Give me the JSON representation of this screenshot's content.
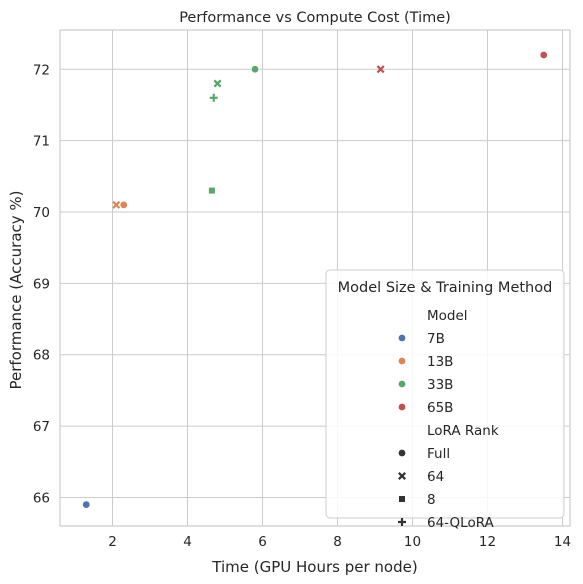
{
  "chart_data": {
    "type": "scatter",
    "title": "Performance vs Compute Cost (Time)",
    "xlabel": "Time (GPU Hours per node)",
    "ylabel": "Performance (Accuracy %)",
    "xlim": [
      0.6,
      14.2
    ],
    "ylim": [
      65.6,
      72.55
    ],
    "xticks": [
      2,
      4,
      6,
      8,
      10,
      12,
      14
    ],
    "yticks": [
      66,
      67,
      68,
      69,
      70,
      71,
      72
    ],
    "grid": true,
    "legend_position": "lower right",
    "colors": {
      "7B": "#4c72b0",
      "13B": "#dd8452",
      "33B": "#55a868",
      "65B": "#c44e52"
    },
    "points": [
      {
        "model": "7B",
        "rank": "Full",
        "x": 1.3,
        "y": 65.9
      },
      {
        "model": "13B",
        "rank": "64",
        "x": 2.1,
        "y": 70.1
      },
      {
        "model": "13B",
        "rank": "Full",
        "x": 2.3,
        "y": 70.1
      },
      {
        "model": "33B",
        "rank": "8",
        "x": 4.65,
        "y": 70.3
      },
      {
        "model": "33B",
        "rank": "64-QLoRA",
        "x": 4.7,
        "y": 71.6
      },
      {
        "model": "33B",
        "rank": "64",
        "x": 4.8,
        "y": 71.8
      },
      {
        "model": "33B",
        "rank": "Full",
        "x": 5.8,
        "y": 72.0
      },
      {
        "model": "65B",
        "rank": "64",
        "x": 9.15,
        "y": 72.0
      },
      {
        "model": "65B",
        "rank": "Full",
        "x": 13.5,
        "y": 72.2
      }
    ],
    "legend": {
      "title": "Model Size & Training Method",
      "model_header": "Model",
      "models": [
        "7B",
        "13B",
        "33B",
        "65B"
      ],
      "rank_header": "LoRA Rank",
      "ranks": [
        "Full",
        "64",
        "8",
        "64-QLoRA"
      ]
    }
  }
}
